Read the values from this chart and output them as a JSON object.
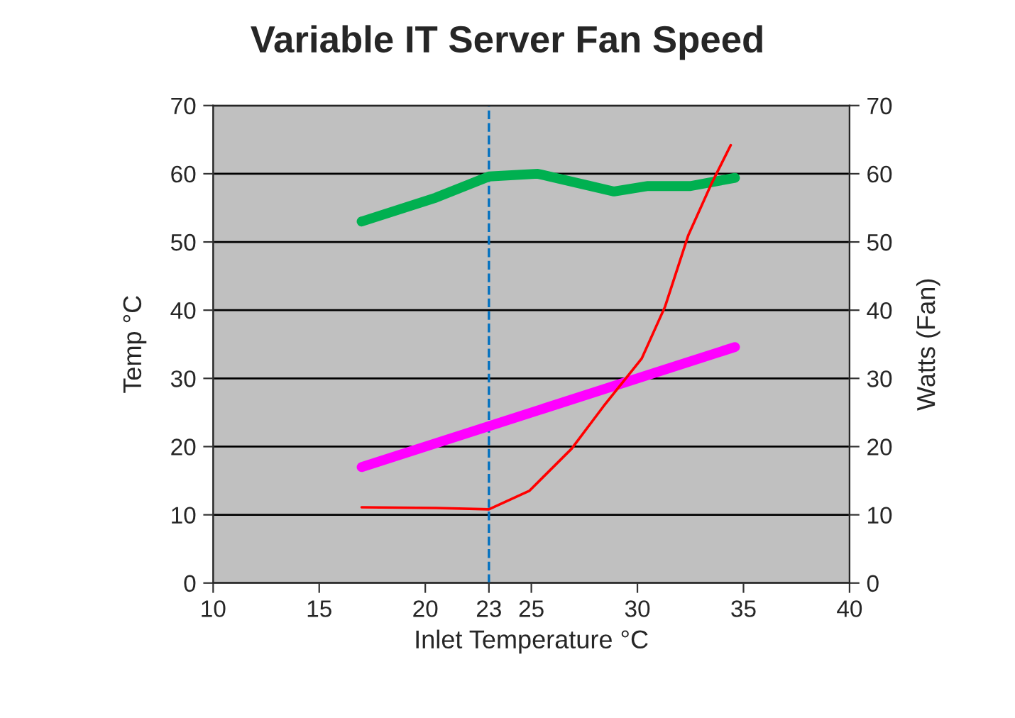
{
  "chart_data": {
    "type": "line",
    "title": "Variable IT Server Fan Speed",
    "xlabel": "Inlet Temperature °C",
    "ylabel": "Temp °C",
    "y2label": "Watts (Fan)",
    "series": [
      {
        "color": "#00b050",
        "x": [
          17,
          20.5,
          23,
          25.3,
          28.9,
          30.5,
          32.5,
          34.6
        ],
        "values": [
          53,
          56.5,
          59.6,
          60,
          57.4,
          58.2,
          58.2,
          59.4
        ]
      },
      {
        "color": "#ff00ff",
        "x": [
          17,
          34.6
        ],
        "values": [
          17,
          34.6
        ]
      },
      {
        "color": "#ff0000",
        "x": [
          17,
          20.5,
          23,
          24.9,
          26.9,
          28.4,
          30.2,
          31.3,
          32.4,
          33.5,
          34.4
        ],
        "values": [
          11.1,
          11,
          10.8,
          13.5,
          19.7,
          25.9,
          32.9,
          40.5,
          51,
          58.6,
          64.2
        ]
      }
    ],
    "xlim": [
      10,
      40
    ],
    "xticks": [
      10,
      15,
      20,
      23,
      25,
      30,
      35,
      40
    ],
    "ylim": [
      0,
      70
    ],
    "yticks": [
      0,
      10,
      20,
      30,
      40,
      50,
      60,
      70
    ],
    "y2lim": [
      0,
      70
    ],
    "y2ticks": [
      0,
      10,
      20,
      30,
      40,
      50,
      60,
      70
    ],
    "ref_lines": [
      {
        "axis": "x",
        "value": 23,
        "color": "#0070c0",
        "line_style": "dashed"
      }
    ],
    "grid": "y",
    "legend": false,
    "marker": "none",
    "line_style": "solid"
  }
}
